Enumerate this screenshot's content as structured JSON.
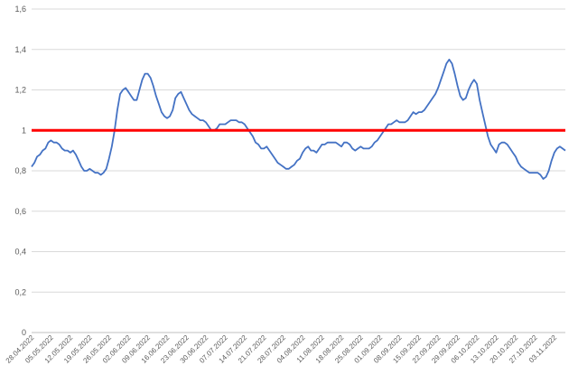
{
  "chart_data": {
    "type": "line",
    "title": "",
    "xlabel": "",
    "ylabel": "",
    "ylim": [
      0,
      1.6
    ],
    "grid": true,
    "legend": "none",
    "y_ticks": [
      "0",
      "0,2",
      "0,4",
      "0,6",
      "0,8",
      "1",
      "1,2",
      "1,4",
      "1,6"
    ],
    "x_ticks": [
      "28.04.2022",
      "05.05.2022",
      "12.05.2022",
      "19.05.2022",
      "26.05.2022",
      "02.06.2022",
      "09.06.2022",
      "16.06.2022",
      "23.06.2022",
      "30.06.2022",
      "07.07.2022",
      "14.07.2022",
      "21.07.2022",
      "28.07.2022",
      "04.08.2022",
      "11.08.2022",
      "18.08.2022",
      "25.08.2022",
      "01.09.2022",
      "08.09.2022",
      "15.09.2022",
      "22.09.2022",
      "29.09.2022",
      "06.10.2022",
      "13.10.2022",
      "20.10.2022",
      "27.10.2022",
      "03.11.2022"
    ],
    "reference_line": {
      "y": 1,
      "color": "#ff0000"
    },
    "series": [
      {
        "color": "#4472c4",
        "x_start": "28.04.2022",
        "step_days": 1,
        "values": [
          0.82,
          0.84,
          0.87,
          0.88,
          0.9,
          0.91,
          0.94,
          0.95,
          0.94,
          0.94,
          0.93,
          0.91,
          0.9,
          0.9,
          0.89,
          0.9,
          0.88,
          0.85,
          0.82,
          0.8,
          0.8,
          0.81,
          0.8,
          0.79,
          0.79,
          0.78,
          0.79,
          0.81,
          0.86,
          0.92,
          1.0,
          1.1,
          1.18,
          1.2,
          1.21,
          1.19,
          1.17,
          1.15,
          1.15,
          1.2,
          1.25,
          1.28,
          1.28,
          1.26,
          1.22,
          1.17,
          1.13,
          1.09,
          1.07,
          1.06,
          1.07,
          1.1,
          1.16,
          1.18,
          1.19,
          1.16,
          1.13,
          1.1,
          1.08,
          1.07,
          1.06,
          1.05,
          1.05,
          1.04,
          1.02,
          1.0,
          1.0,
          1.01,
          1.03,
          1.03,
          1.03,
          1.04,
          1.05,
          1.05,
          1.05,
          1.04,
          1.04,
          1.03,
          1.01,
          0.99,
          0.97,
          0.94,
          0.93,
          0.91,
          0.91,
          0.92,
          0.9,
          0.88,
          0.86,
          0.84,
          0.83,
          0.82,
          0.81,
          0.81,
          0.82,
          0.83,
          0.85,
          0.86,
          0.89,
          0.91,
          0.92,
          0.9,
          0.9,
          0.89,
          0.91,
          0.93,
          0.93,
          0.94,
          0.94,
          0.94,
          0.94,
          0.93,
          0.92,
          0.94,
          0.94,
          0.93,
          0.91,
          0.9,
          0.91,
          0.92,
          0.91,
          0.91,
          0.91,
          0.92,
          0.94,
          0.95,
          0.97,
          0.99,
          1.01,
          1.03,
          1.03,
          1.04,
          1.05,
          1.04,
          1.04,
          1.04,
          1.05,
          1.07,
          1.09,
          1.08,
          1.09,
          1.09,
          1.1,
          1.12,
          1.14,
          1.16,
          1.18,
          1.21,
          1.25,
          1.29,
          1.33,
          1.35,
          1.33,
          1.28,
          1.22,
          1.17,
          1.15,
          1.16,
          1.2,
          1.23,
          1.25,
          1.23,
          1.15,
          1.09,
          1.03,
          0.97,
          0.93,
          0.91,
          0.89,
          0.93,
          0.94,
          0.94,
          0.93,
          0.91,
          0.89,
          0.87,
          0.84,
          0.82,
          0.81,
          0.8,
          0.79,
          0.79,
          0.79,
          0.79,
          0.78,
          0.76,
          0.77,
          0.8,
          0.85,
          0.89,
          0.91,
          0.92,
          0.91,
          0.9
        ]
      }
    ]
  }
}
